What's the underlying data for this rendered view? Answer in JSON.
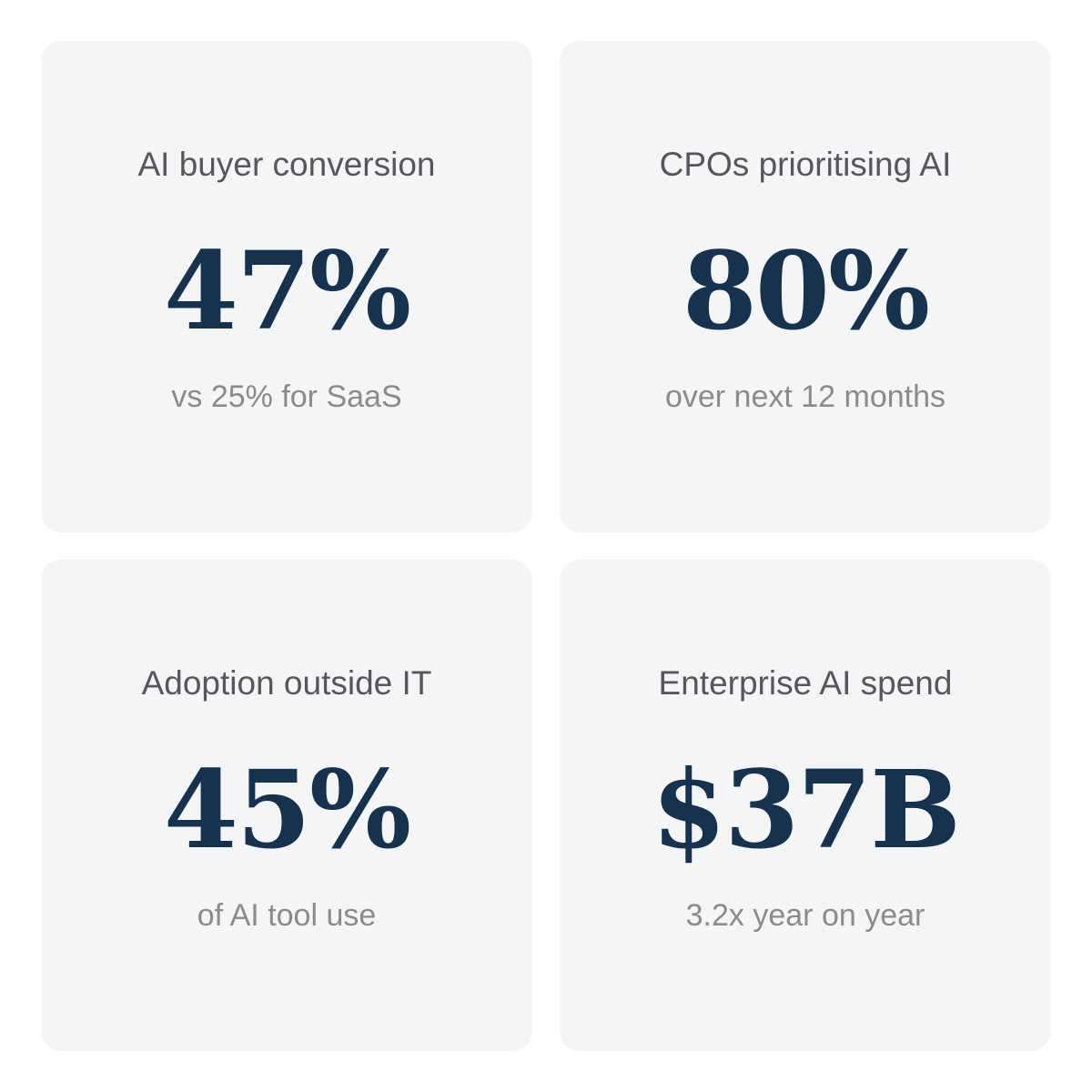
{
  "cards": [
    {
      "label": "AI buyer conversion",
      "value": "47%",
      "sub": "vs 25% for SaaS"
    },
    {
      "label": "CPOs prioritising AI",
      "value": "80%",
      "sub": "over next 12 months"
    },
    {
      "label": "Adoption outside IT",
      "value": "45%",
      "sub": "of AI tool use"
    },
    {
      "label": "Enterprise AI spend",
      "value": "$37B",
      "sub": "3.2x year on year"
    }
  ]
}
